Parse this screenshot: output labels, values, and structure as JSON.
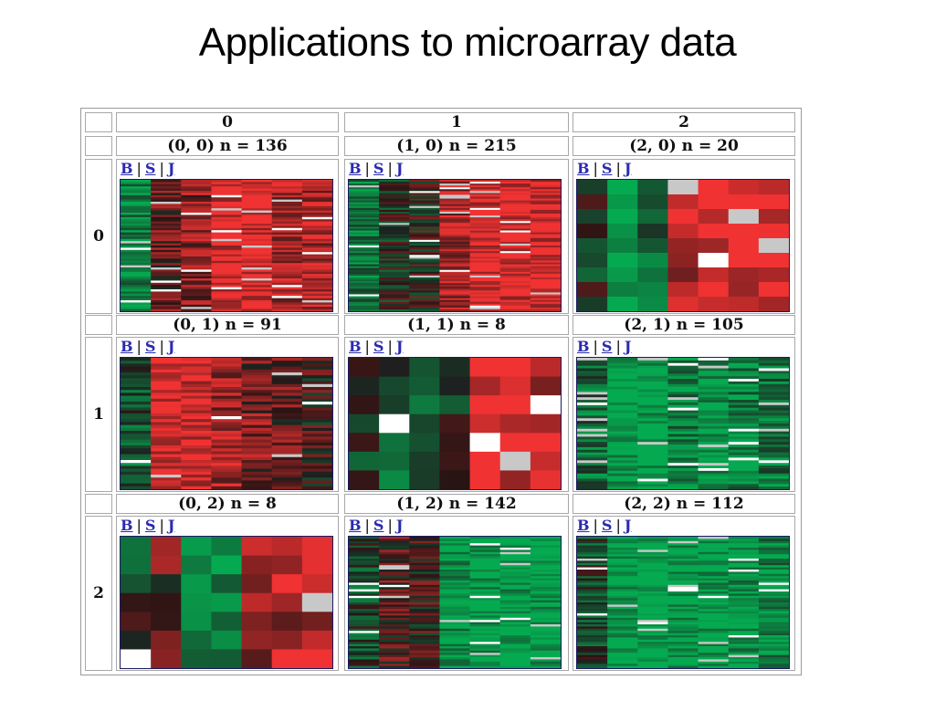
{
  "slide": {
    "title": "Applications to microarray data"
  },
  "grid": {
    "columns": [
      "0",
      "1",
      "2"
    ],
    "rows": [
      "0",
      "1",
      "2"
    ],
    "links": {
      "b": "B",
      "s": "S",
      "j": "J",
      "separator": "|"
    },
    "cells": [
      {
        "col": 0,
        "row": 0,
        "label": "(0, 0) n = 136"
      },
      {
        "col": 1,
        "row": 0,
        "label": "(1, 0) n = 215"
      },
      {
        "col": 2,
        "row": 0,
        "label": "(2, 0) n = 20"
      },
      {
        "col": 0,
        "row": 1,
        "label": "(0, 1) n = 91"
      },
      {
        "col": 1,
        "row": 1,
        "label": "(1, 1) n = 8"
      },
      {
        "col": 2,
        "row": 1,
        "label": "(2, 1) n = 105"
      },
      {
        "col": 0,
        "row": 2,
        "label": "(0, 2) n = 8"
      },
      {
        "col": 1,
        "row": 2,
        "label": "(1, 2) n = 142"
      },
      {
        "col": 2,
        "row": 2,
        "label": "(2, 2) n = 112"
      }
    ]
  },
  "colors": {
    "red": "#ee3333",
    "green": "#00aa50",
    "dark": "#1e1e1e",
    "missing": "#c8c8c8",
    "frame": "#1a1a60",
    "link": "#2b2bb0"
  }
}
